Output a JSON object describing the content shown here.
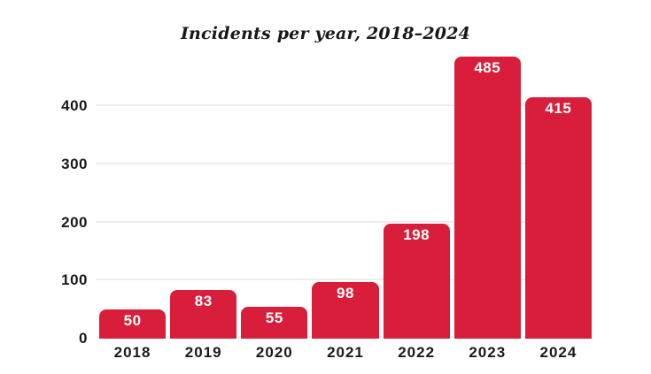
{
  "chart_data": {
    "type": "bar",
    "title": "Incidents per year, 2018–2024",
    "categories": [
      "2018",
      "2019",
      "2020",
      "2021",
      "2022",
      "2023",
      "2024"
    ],
    "values": [
      50,
      83,
      55,
      98,
      198,
      485,
      415
    ],
    "xlabel": "",
    "ylabel": "",
    "y_ticks": [
      0,
      100,
      200,
      300,
      400
    ],
    "ylim": [
      0,
      490
    ],
    "grid": "horizontal-only",
    "gridline_at_zero": false,
    "legend": "none",
    "colors": {
      "bar": "#D81E3A",
      "value_label": "#ffffff",
      "axis_label": "#1a1a1a",
      "title": "#17171c",
      "gridline": "#ededed",
      "background": "#ffffff"
    }
  }
}
